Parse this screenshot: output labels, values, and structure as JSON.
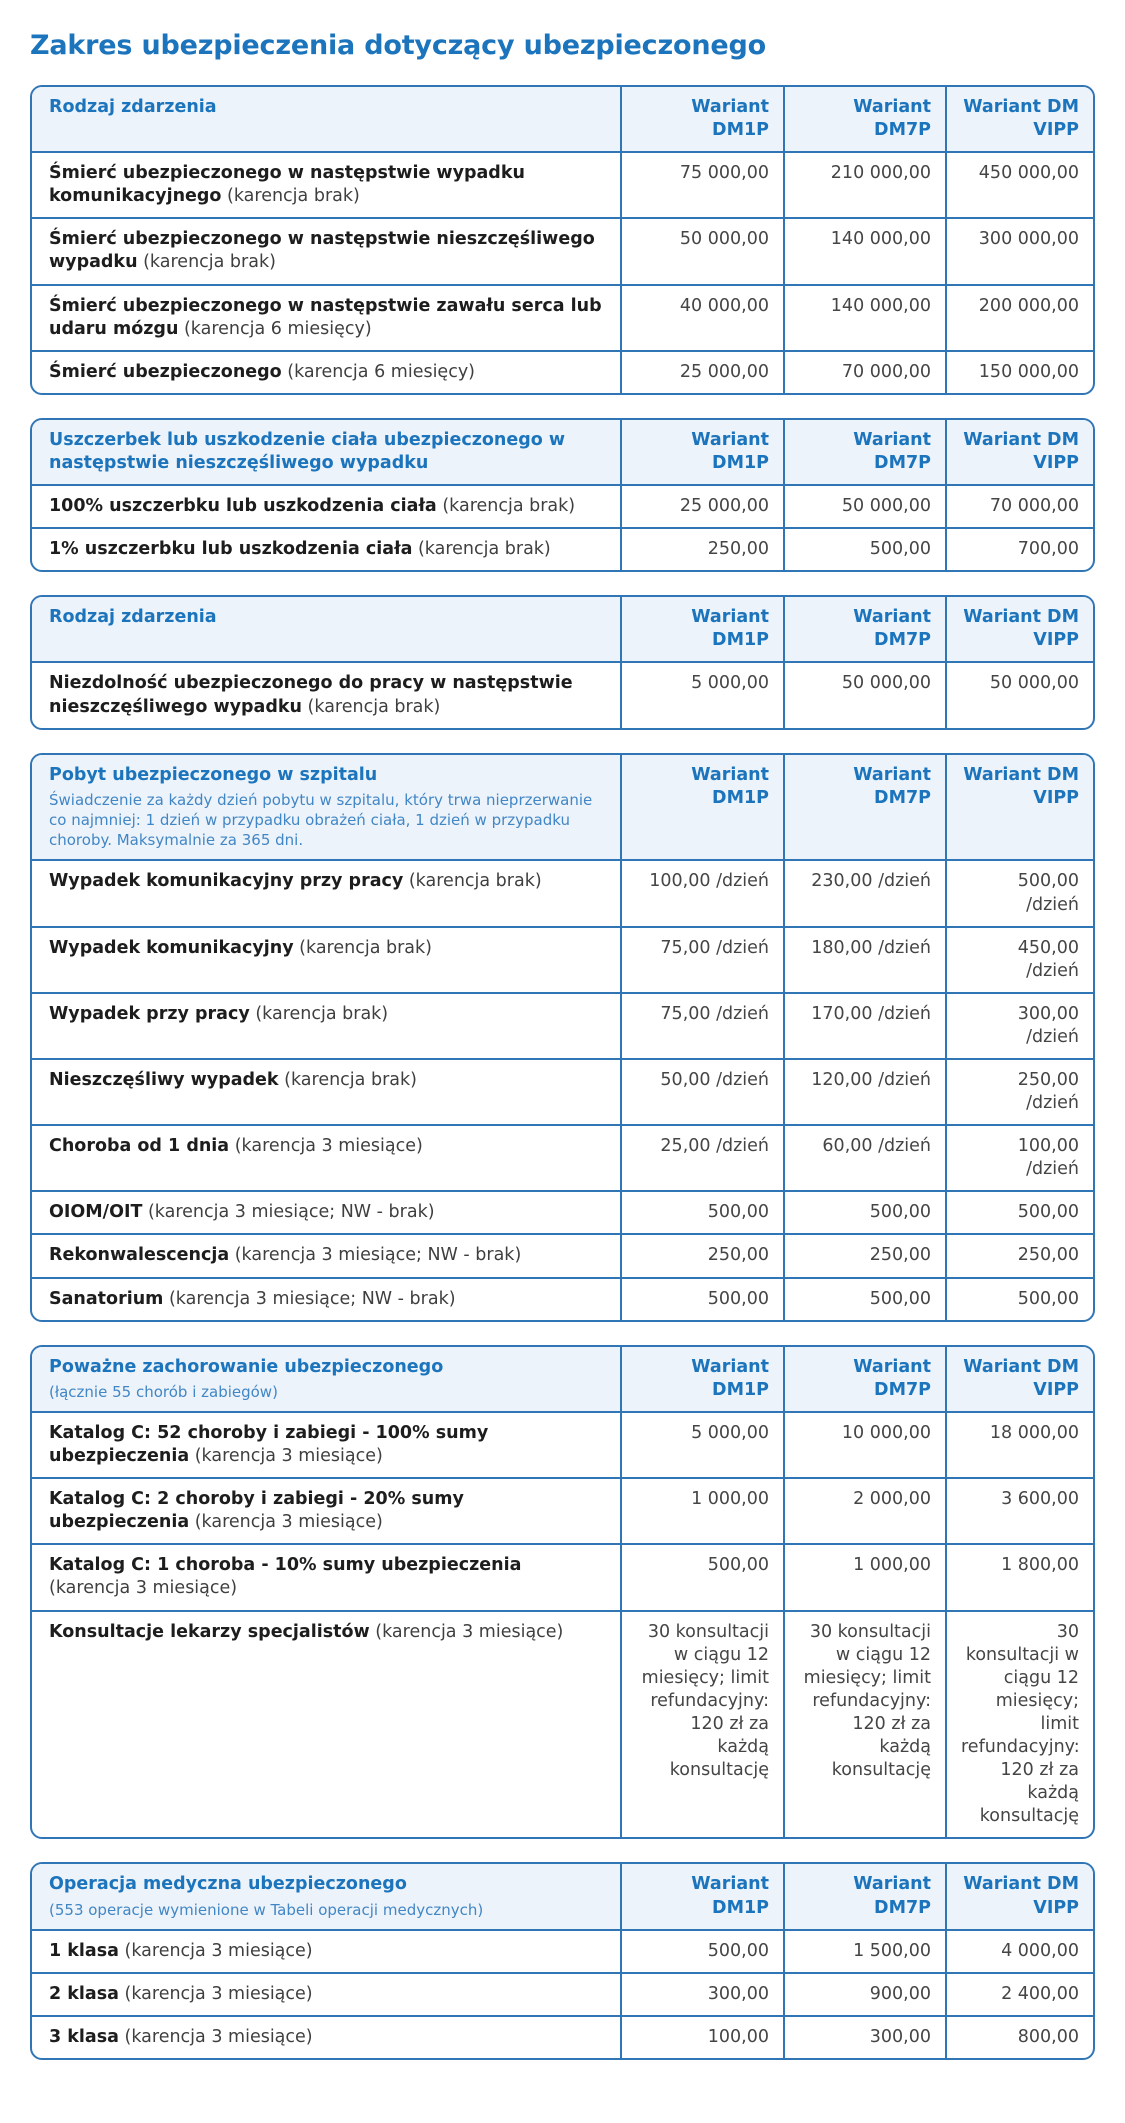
{
  "page_title": "Zakres ubezpieczenia dotyczący ubezpieczonego",
  "colors": {
    "accent": "#1b74bc",
    "border": "#3076b7",
    "header_bg": "#edf3fa",
    "subtitle": "#4186c5",
    "text": "#454545"
  },
  "columns": [
    "Wariant DM1P",
    "Wariant DM7P",
    "Wariant DM VIPP"
  ],
  "tables": [
    {
      "title": "Rodzaj zdarzenia",
      "subtitle": "",
      "rows": [
        {
          "b": "Śmierć ubezpieczonego w następstwie wypadku komunikacyjnego",
          "n": " (karencja brak)",
          "values": [
            "75 000,00",
            "210 000,00",
            "450 000,00"
          ]
        },
        {
          "b": "Śmierć ubezpieczonego w następstwie nieszczęśliwego wypadku",
          "n": " (karencja brak)",
          "values": [
            "50 000,00",
            "140 000,00",
            "300 000,00"
          ]
        },
        {
          "b": "Śmierć ubezpieczonego w następstwie zawału serca lub udaru mózgu",
          "n": " (karencja 6 miesięcy)",
          "values": [
            "40 000,00",
            "140 000,00",
            "200 000,00"
          ]
        },
        {
          "b": "Śmierć ubezpieczonego",
          "n": " (karencja 6 miesięcy)",
          "values": [
            "25 000,00",
            "70 000,00",
            "150 000,00"
          ]
        }
      ]
    },
    {
      "title": "Uszczerbek lub uszkodzenie ciała ubezpieczonego w następstwie nieszczęśliwego wypadku",
      "subtitle": "",
      "rows": [
        {
          "b": "100% uszczerbku lub uszkodzenia ciała",
          "n": " (karencja brak)",
          "values": [
            "25 000,00",
            "50 000,00",
            "70 000,00"
          ]
        },
        {
          "b": "1% uszczerbku lub uszkodzenia ciała",
          "n": " (karencja brak)",
          "values": [
            "250,00",
            "500,00",
            "700,00"
          ]
        }
      ]
    },
    {
      "title": "Rodzaj zdarzenia",
      "subtitle": "",
      "rows": [
        {
          "b": "Niezdolność ubezpieczonego do pracy w następstwie nieszczęśliwego wypadku",
          "n": " (karencja brak)",
          "values": [
            "5 000,00",
            "50 000,00",
            "50 000,00"
          ]
        }
      ]
    },
    {
      "title": "Pobyt ubezpieczonego w szpitalu",
      "subtitle": "Świadczenie za każdy dzień pobytu w szpitalu, który trwa nieprzerwanie co najmniej: 1 dzień w przypadku obrażeń ciała, 1 dzień w przypadku choroby. Maksymalnie za 365 dni.",
      "rows": [
        {
          "b": "Wypadek komunikacyjny przy pracy",
          "n": " (karencja brak)",
          "values": [
            "100,00 /dzień",
            "230,00 /dzień",
            "500,00 /dzień"
          ]
        },
        {
          "b": "Wypadek komunikacyjny",
          "n": " (karencja brak)",
          "values": [
            "75,00 /dzień",
            "180,00 /dzień",
            "450,00 /dzień"
          ]
        },
        {
          "b": "Wypadek przy pracy",
          "n": " (karencja brak)",
          "values": [
            "75,00 /dzień",
            "170,00 /dzień",
            "300,00 /dzień"
          ]
        },
        {
          "b": "Nieszczęśliwy wypadek",
          "n": " (karencja brak)",
          "values": [
            "50,00 /dzień",
            "120,00 /dzień",
            "250,00 /dzień"
          ]
        },
        {
          "b": "Choroba od 1 dnia",
          "n": " (karencja 3 miesiące)",
          "values": [
            "25,00 /dzień",
            "60,00 /dzień",
            "100,00 /dzień"
          ]
        },
        {
          "b": "OIOM/OIT",
          "n": " (karencja 3 miesiące; NW - brak)",
          "values": [
            "500,00",
            "500,00",
            "500,00"
          ]
        },
        {
          "b": "Rekonwalescencja",
          "n": " (karencja 3 miesiące; NW - brak)",
          "values": [
            "250,00",
            "250,00",
            "250,00"
          ]
        },
        {
          "b": "Sanatorium",
          "n": " (karencja 3 miesiące; NW - brak)",
          "values": [
            "500,00",
            "500,00",
            "500,00"
          ]
        }
      ]
    },
    {
      "title": "Poważne zachorowanie ubezpieczonego",
      "subtitle": "(łącznie 55 chorób i zabiegów)",
      "rows": [
        {
          "b": "Katalog C: 52 choroby i zabiegi - 100% sumy ubezpieczenia",
          "n": " (karencja 3 miesiące)",
          "values": [
            "5 000,00",
            "10 000,00",
            "18 000,00"
          ]
        },
        {
          "b": "Katalog C: 2 choroby i zabiegi - 20% sumy ubezpieczenia",
          "n": " (karencja 3 miesiące)",
          "values": [
            "1 000,00",
            "2 000,00",
            "3 600,00"
          ]
        },
        {
          "b": "Katalog C: 1 choroba - 10% sumy ubezpieczenia",
          "n": " (karencja 3 miesiące)",
          "values": [
            "500,00",
            "1 000,00",
            "1 800,00"
          ]
        },
        {
          "b": "Konsultacje lekarzy specjalistów",
          "n": " (karencja 3 miesiące)",
          "values": [
            "30 konsultacji w ciągu 12 miesięcy; limit refundacyjny: 120 zł za każdą konsultację",
            "30 konsultacji w ciągu 12 miesięcy; limit refundacyjny: 120 zł za każdą konsultację",
            "30 konsultacji w ciągu 12 miesięcy; limit refundacyjny: 120 zł za każdą konsultację"
          ]
        }
      ]
    },
    {
      "title": "Operacja medyczna ubezpieczonego",
      "subtitle": "(553 operacje wymienione w Tabeli operacji medycznych)",
      "rows": [
        {
          "b": "1 klasa",
          "n": " (karencja 3 miesiące)",
          "values": [
            "500,00",
            "1 500,00",
            "4 000,00"
          ]
        },
        {
          "b": "2 klasa",
          "n": " (karencja 3 miesiące)",
          "values": [
            "300,00",
            "900,00",
            "2 400,00"
          ]
        },
        {
          "b": "3 klasa",
          "n": " (karencja 3 miesiące)",
          "values": [
            "100,00",
            "300,00",
            "800,00"
          ]
        }
      ]
    }
  ]
}
